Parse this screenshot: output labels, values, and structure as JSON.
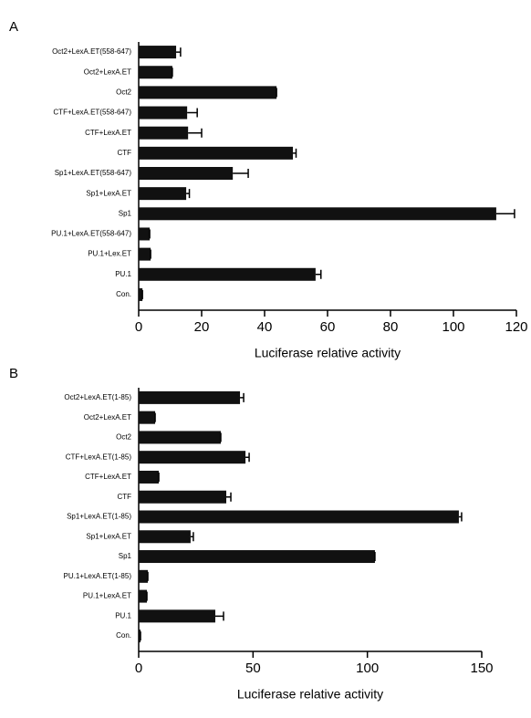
{
  "chart_data": [
    {
      "type": "bar",
      "panel_label": "A",
      "categories": [
        "Oct2+LexA.ET(558-647)",
        "Oct2+LexA.ET",
        "Oct2",
        "CTF+LexA.ET(558-647)",
        "CTF+LexA.ET",
        "CTF",
        "Sp1+LexA.ET(558-647)",
        "Sp1+LexA.ET",
        "Sp1",
        "PU.1+LexA.ET(558-647)",
        "PU.1+Lex.ET",
        "PU.1",
        "Con."
      ],
      "values": [
        11.9,
        10.7,
        43.8,
        15.4,
        15.7,
        49,
        29.9,
        15.1,
        113.6,
        3.5,
        3.8,
        56.2,
        1.2
      ],
      "errors": [
        1.4,
        0,
        0,
        3.2,
        4.3,
        1,
        4.9,
        1,
        5.8,
        0,
        0,
        1.7,
        0
      ],
      "color": "#111111",
      "xlabel": "Luciferase relative activity",
      "xlim": [
        0,
        120
      ],
      "xticks": [
        0,
        20,
        40,
        60,
        80,
        100,
        120
      ]
    },
    {
      "type": "bar",
      "panel_label": "B",
      "categories": [
        "Oct2+LexA.ET(1-85)",
        "Oct2+LexA.ET",
        "Oct2",
        "CTF+LexA.ET(1-85)",
        "CTF+LexA.ET",
        "CTF",
        "Sp1+LexA.ET(1-85)",
        "Sp1+LexA.ET",
        "Sp1",
        "PU.1+LexA.ET(1-85)",
        "PU.1+LexA.ET",
        "PU.1",
        "Con."
      ],
      "values": [
        44.3,
        7.2,
        35.9,
        46.7,
        8.8,
        38.3,
        140,
        22.7,
        103.3,
        4,
        3.6,
        33.5,
        0.8
      ],
      "errors": [
        1.6,
        0,
        0,
        1.6,
        0,
        2,
        1.2,
        1.2,
        0,
        0,
        0,
        3.6,
        0
      ],
      "color": "#111111",
      "xlabel": "Luciferase relative activity",
      "xlim": [
        0,
        150
      ],
      "xticks": [
        0,
        50,
        100,
        150
      ]
    }
  ]
}
